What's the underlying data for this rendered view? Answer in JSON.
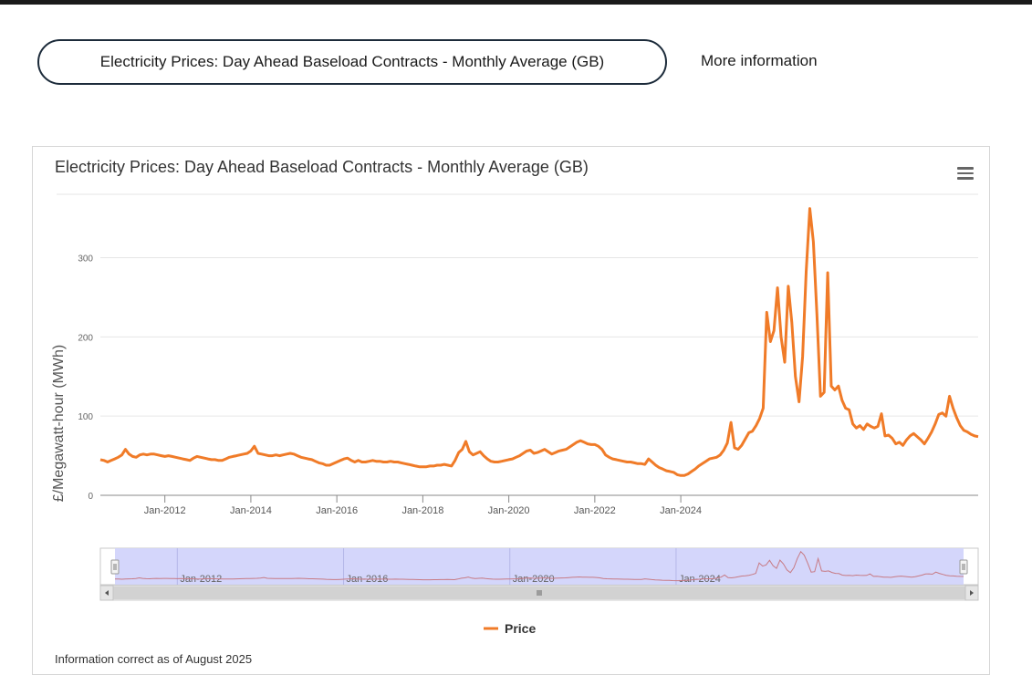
{
  "header": {
    "pill_label": "Electricity Prices: Day Ahead Baseload Contracts - Monthly Average (GB)",
    "more_info": "More information"
  },
  "chart_data": {
    "type": "line",
    "title": "Electricity Prices: Day Ahead Baseload Contracts - Monthly Average (GB)",
    "xlabel": "",
    "ylabel": "£/Megawatt-hour (MWh)",
    "ylim": [
      0,
      380
    ],
    "yticks": [
      0,
      100,
      200,
      300
    ],
    "xticks": [
      "Jan-2012",
      "Jan-2014",
      "Jan-2016",
      "Jan-2018",
      "Jan-2020",
      "Jan-2022",
      "Jan-2024"
    ],
    "navigator_labels": [
      "Jan-2012",
      "Jan-2016",
      "Jan-2020",
      "Jan-2024"
    ],
    "x_start": "2010-07",
    "grid": true,
    "legend": "bottom-center",
    "series": [
      {
        "name": "Price",
        "color": "#f07b28",
        "values": [
          45,
          44,
          42,
          44,
          46,
          48,
          51,
          58,
          52,
          49,
          48,
          51,
          52,
          51,
          52,
          52,
          51,
          50,
          49,
          50,
          49,
          48,
          47,
          46,
          45,
          44,
          47,
          49,
          48,
          47,
          46,
          45,
          45,
          44,
          44,
          46,
          48,
          49,
          50,
          51,
          52,
          53,
          56,
          62,
          53,
          52,
          51,
          50,
          50,
          51,
          50,
          51,
          52,
          53,
          52,
          50,
          48,
          47,
          46,
          45,
          43,
          41,
          40,
          38,
          38,
          40,
          42,
          44,
          46,
          47,
          44,
          42,
          44,
          42,
          42,
          43,
          44,
          43,
          43,
          42,
          42,
          43,
          42,
          42,
          41,
          40,
          39,
          38,
          37,
          36,
          36,
          36,
          37,
          37,
          38,
          38,
          39,
          38,
          37,
          44,
          54,
          58,
          68,
          55,
          51,
          53,
          55,
          50,
          46,
          43,
          42,
          42,
          43,
          44,
          45,
          46,
          48,
          50,
          53,
          56,
          57,
          53,
          54,
          56,
          58,
          55,
          52,
          54,
          56,
          57,
          58,
          61,
          64,
          67,
          69,
          67,
          65,
          64,
          64,
          62,
          58,
          51,
          48,
          46,
          45,
          44,
          43,
          42,
          42,
          41,
          40,
          40,
          39,
          46,
          42,
          38,
          35,
          33,
          31,
          30,
          29,
          26,
          25,
          25,
          27,
          30,
          33,
          37,
          40,
          43,
          46,
          47,
          48,
          51,
          57,
          66,
          92,
          60,
          58,
          63,
          71,
          79,
          81,
          88,
          97,
          110,
          231,
          194,
          208,
          262,
          200,
          168,
          264,
          218,
          150,
          118,
          175,
          282,
          362,
          320,
          228,
          125,
          130,
          281,
          138,
          133,
          138,
          120,
          110,
          108,
          90,
          85,
          88,
          83,
          90,
          87,
          85,
          87,
          103,
          75,
          76,
          72,
          65,
          67,
          63,
          70,
          75,
          78,
          74,
          70,
          65,
          72,
          80,
          90,
          102,
          104,
          100,
          125,
          110,
          98,
          88,
          82,
          80,
          77,
          75,
          74
        ]
      }
    ]
  },
  "legend": {
    "price_label": "Price"
  },
  "footnote": "Information correct as of August 2025"
}
